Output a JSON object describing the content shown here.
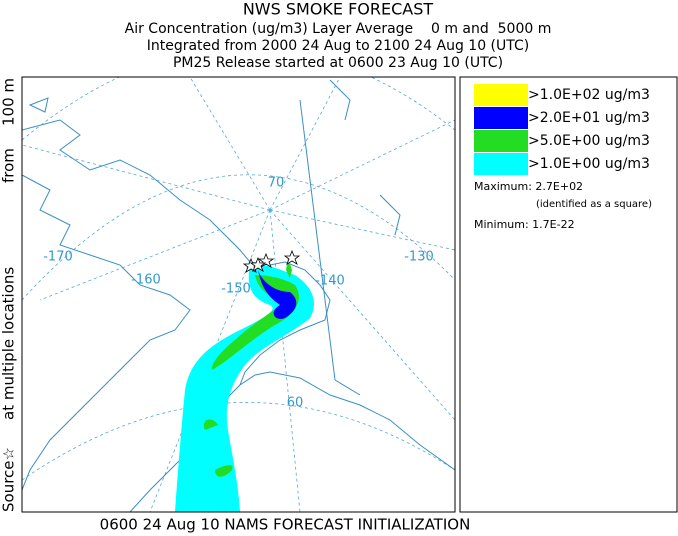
{
  "header": {
    "title": "NWS SMOKE FORECAST",
    "lines": [
      "Air Concentration (ug/m3) Layer Average    0 m and  5000 m",
      "Integrated from 2000 24 Aug to 2100 24 Aug 10 (UTC)",
      "PM25 Release started at 0600 23 Aug 10 (UTC)"
    ]
  },
  "side_label": [
    "Source☆",
    "at multiple locations",
    "from",
    "100 m"
  ],
  "map": {
    "graticule_labels": [
      "-170",
      "-160",
      "-150",
      "-140",
      "-130",
      "70",
      "60"
    ]
  },
  "legend": {
    "items": [
      {
        "label": ">1.0E+02 ug/m3",
        "color": "#ffff00"
      },
      {
        "label": ">2.0E+01 ug/m3",
        "color": "#0000ff"
      },
      {
        "label": ">5.0E+00 ug/m3",
        "color": "#22dd22"
      },
      {
        "label": ">1.0E+00 ug/m3",
        "color": "#00ffff"
      }
    ],
    "maximum": "Maximum: 2.7E+02",
    "max_note": "(identified as a square)",
    "minimum": "Minimum: 1.7E-22"
  },
  "footer": "0600 24 Aug 10 NAMS FORECAST INITIALIZATION"
}
